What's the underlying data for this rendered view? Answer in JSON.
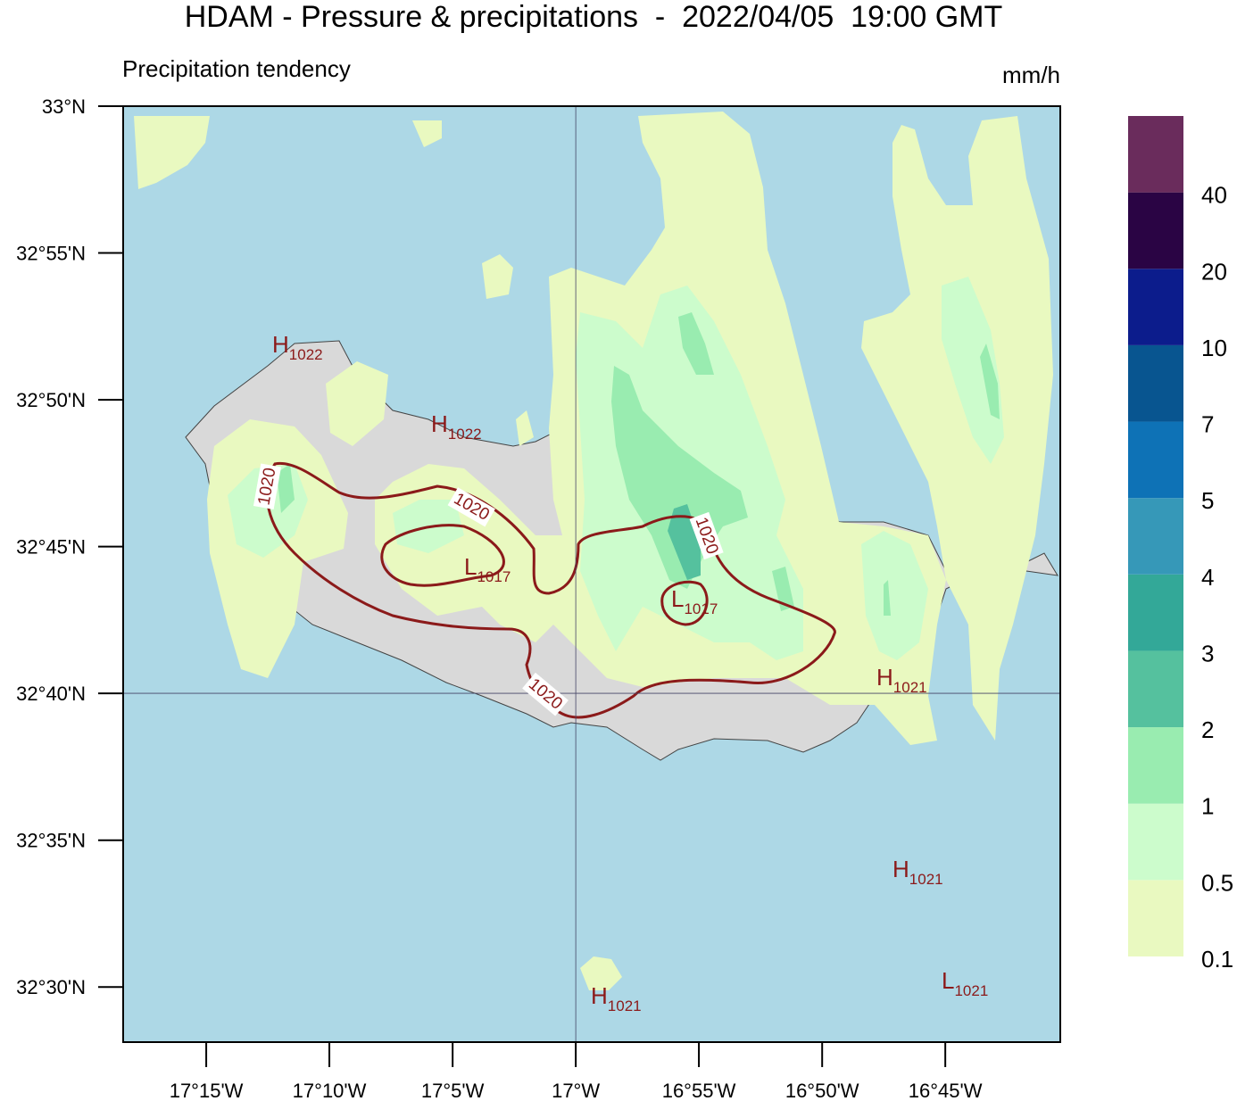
{
  "map": {
    "title": "HDAM - Pressure & precipitations  -  2022/04/05  19:00 GMT",
    "subtitle": "Precipitation tendency",
    "xlim": [
      -17.3062,
      -16.6722
    ],
    "ylim": [
      32.4687,
      33.0
    ],
    "xticks": [
      {
        "value": -17.25,
        "label": "17°15'W"
      },
      {
        "value": -17.1667,
        "label": "17°10'W"
      },
      {
        "value": -17.0833,
        "label": "17°5'W"
      },
      {
        "value": -17.0,
        "label": "17°W"
      },
      {
        "value": -16.9167,
        "label": "16°55'W"
      },
      {
        "value": -16.8333,
        "label": "16°50'W"
      },
      {
        "value": -16.75,
        "label": "16°45'W"
      }
    ],
    "yticks": [
      {
        "value": 33.0,
        "label": "33°N"
      },
      {
        "value": 32.9167,
        "label": "32°55'N"
      },
      {
        "value": 32.8333,
        "label": "32°50'N"
      },
      {
        "value": 32.75,
        "label": "32°45'N"
      },
      {
        "value": 32.6667,
        "label": "32°40'N"
      },
      {
        "value": 32.5833,
        "label": "32°35'N"
      },
      {
        "value": 32.5,
        "label": "32°30'N"
      }
    ],
    "colorbar": {
      "unit": "mm/h",
      "levels": [
        0.1,
        0.5,
        1,
        2,
        3,
        4,
        5,
        7,
        10,
        20,
        40
      ],
      "colors": [
        "#e9f9c0",
        "#ccfccc",
        "#99ecb0",
        "#55c19e",
        "#33a898",
        "#3698b8",
        "#0e72b6",
        "#085590",
        "#0c1c8c",
        "#2a0444",
        "#6a2c5c"
      ]
    },
    "pressure_labels": [
      {
        "letter": "H",
        "value": "1022"
      },
      {
        "letter": "H",
        "value": "1022"
      },
      {
        "letter": "L",
        "value": "1017"
      },
      {
        "letter": "L",
        "value": "1017"
      },
      {
        "letter": "H",
        "value": "1021"
      },
      {
        "letter": "H",
        "value": "1021"
      },
      {
        "letter": "H",
        "value": "1021"
      },
      {
        "letter": "L",
        "value": "1021"
      }
    ],
    "contour_labels": [
      "1020",
      "1020",
      "1020",
      "1020"
    ]
  }
}
